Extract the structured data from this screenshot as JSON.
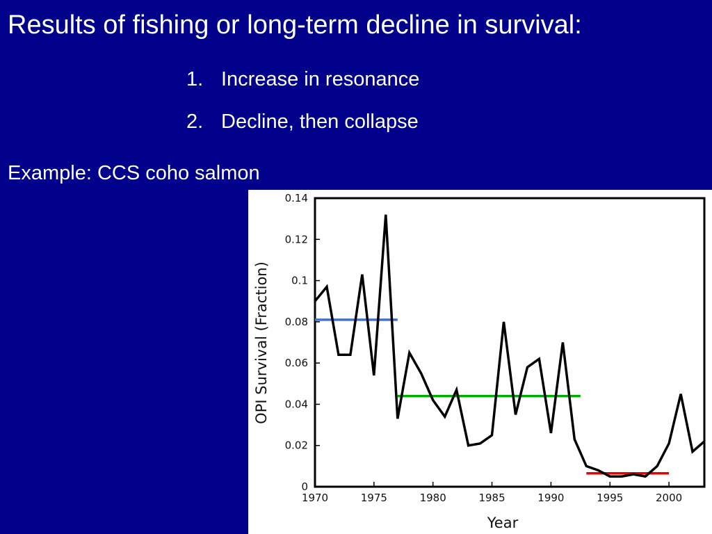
{
  "slide": {
    "title": "Results of fishing or long-term decline in survival:",
    "bullets": [
      {
        "number": "1.",
        "text": "Increase in resonance"
      },
      {
        "number": "2.",
        "text": "Decline, then collapse"
      }
    ],
    "example": "Example: CCS coho salmon"
  },
  "chart_data": {
    "type": "line",
    "title": "",
    "xlabel": "Year",
    "ylabel": "OPI Survival (Fraction)",
    "xlim": [
      1970,
      2003
    ],
    "ylim": [
      0,
      0.14
    ],
    "x_ticks": [
      1970,
      1975,
      1980,
      1985,
      1990,
      1995,
      2000
    ],
    "y_ticks": [
      {
        "value": 0,
        "label": "0"
      },
      {
        "value": 0.02,
        "label": "0.02"
      },
      {
        "value": 0.04,
        "label": "0.04"
      },
      {
        "value": 0.06,
        "label": "0.06"
      },
      {
        "value": 0.08,
        "label": "0.08"
      },
      {
        "value": 0.1,
        "label": "0.1"
      },
      {
        "value": 0.12,
        "label": "0.12"
      },
      {
        "value": 0.14,
        "label": "0.14"
      }
    ],
    "grid": false,
    "series": [
      {
        "color": "#000000",
        "x": [
          1970,
          1971,
          1972,
          1973,
          1974,
          1975,
          1976,
          1977,
          1978,
          1979,
          1980,
          1981,
          1982,
          1983,
          1984,
          1985,
          1986,
          1987,
          1988,
          1989,
          1990,
          1991,
          1992,
          1993,
          1994,
          1995,
          1996,
          1997,
          1998,
          1999,
          2000,
          2001,
          2002,
          2003
        ],
        "y": [
          0.09,
          0.097,
          0.064,
          0.064,
          0.103,
          0.054,
          0.132,
          0.033,
          0.065,
          0.055,
          0.042,
          0.034,
          0.047,
          0.02,
          0.021,
          0.025,
          0.08,
          0.035,
          0.058,
          0.062,
          0.026,
          0.07,
          0.023,
          0.01,
          0.008,
          0.005,
          0.005,
          0.006,
          0.005,
          0.01,
          0.021,
          0.045,
          0.017,
          0.022
        ]
      }
    ],
    "mean_lines": [
      {
        "x_start": 1970,
        "x_end": 1977,
        "y": 0.081,
        "color": "#4472c4"
      },
      {
        "x_start": 1977,
        "x_end": 1992.5,
        "y": 0.044,
        "color": "#00aa00"
      },
      {
        "x_start": 1993,
        "x_end": 2000,
        "y": 0.0065,
        "color": "#ee0000"
      }
    ]
  }
}
